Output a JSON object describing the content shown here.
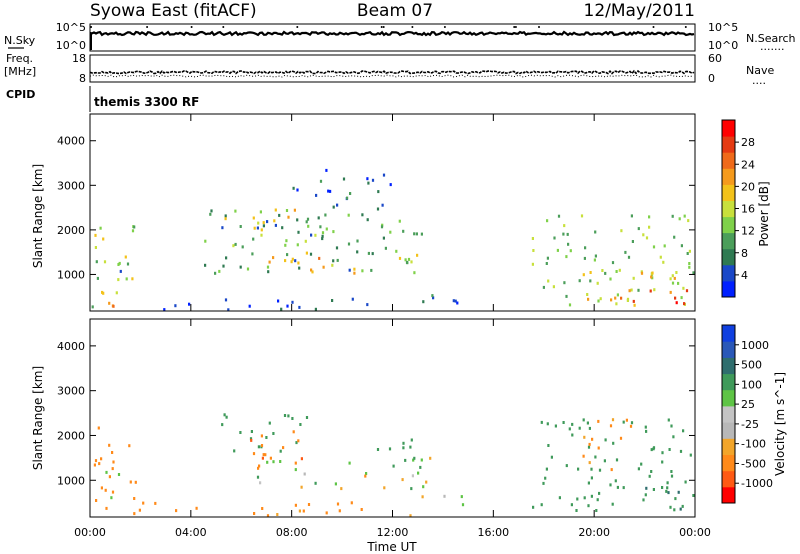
{
  "header": {
    "station": "Syowa East (fitACF)",
    "beam": "Beam 07",
    "date": "12/May/2011"
  },
  "nsky_panel": {
    "label": "N.Sky",
    "ticks_left": [
      "10^5",
      "10^0"
    ],
    "ticks_right": [
      "10^5",
      "10^0"
    ],
    "right_label": "N.Search",
    "right_dots": "......."
  },
  "freq_panel": {
    "label_line1": "Freq.",
    "label_line2": "[MHz]",
    "ticks_left": [
      "18",
      "8"
    ],
    "ticks_right": [
      "60",
      "0"
    ],
    "right_label": "Nave",
    "right_dots": "...."
  },
  "cpid_panel": {
    "label": "CPID",
    "value": "themis 3300 RF"
  },
  "colors": {
    "power": [
      "#0020ff",
      "#1a48c8",
      "#2f7a52",
      "#4b9e5a",
      "#7fd14a",
      "#c8e03c",
      "#f3c21a",
      "#f59a1c",
      "#ef6a1a",
      "#e53a12",
      "#ff0000"
    ],
    "velocity": [
      "#ff0000",
      "#ff5a14",
      "#ff8a1a",
      "#f2a52a",
      "#b8b8b8",
      "#c4c4c4",
      "#5ec445",
      "#3f9a5a",
      "#2f6e6e",
      "#2a58b8",
      "#1040e0"
    ]
  },
  "chart_data": [
    {
      "type": "heatmap",
      "name": "power",
      "x_ticks": [
        "00:00",
        "04:00",
        "08:00",
        "12:00",
        "16:00",
        "20:00",
        "00:00"
      ],
      "xlabel": "Time UT",
      "ylabel": "Slant Range [km]",
      "y_ticks": [
        "1000",
        "2000",
        "3000",
        "4000"
      ],
      "xlim_hours": [
        0,
        24
      ],
      "ylim_km": [
        180,
        4600
      ],
      "colorbar": {
        "label": "Power [dB]",
        "ticks": [
          "4",
          "8",
          "12",
          "16",
          "20",
          "24",
          "28"
        ],
        "range": [
          0,
          30
        ]
      },
      "echo_regions": [
        {
          "t0": 0.0,
          "t1": 1.8,
          "r0": 250,
          "r1": 2200,
          "level": 14
        },
        {
          "t0": 0.9,
          "t1": 1.5,
          "r0": 1000,
          "r1": 1700,
          "level": 8
        },
        {
          "t0": 0.2,
          "t1": 1.4,
          "r0": 250,
          "r1": 700,
          "level": 22
        },
        {
          "t0": 4.5,
          "t1": 13.5,
          "r0": 1000,
          "r1": 2500,
          "level": 9
        },
        {
          "t0": 5.2,
          "t1": 9.0,
          "r0": 1600,
          "r1": 2500,
          "level": 16
        },
        {
          "t0": 7.0,
          "t1": 13.0,
          "r0": 1000,
          "r1": 1500,
          "level": 19
        },
        {
          "t0": 13.0,
          "t1": 14.5,
          "r0": 400,
          "r1": 700,
          "level": 6
        },
        {
          "t0": 2.0,
          "t1": 15.0,
          "r0": 200,
          "r1": 450,
          "level": 4
        },
        {
          "t0": 17.5,
          "t1": 24.0,
          "r0": 300,
          "r1": 2400,
          "level": 12
        },
        {
          "t0": 19.5,
          "t1": 23.5,
          "r0": 300,
          "r1": 1200,
          "level": 18
        },
        {
          "t0": 21.0,
          "t1": 23.8,
          "r0": 250,
          "r1": 700,
          "level": 26
        },
        {
          "t0": 8.0,
          "t1": 12.0,
          "r0": 2500,
          "r1": 3400,
          "level": 5
        }
      ]
    },
    {
      "type": "heatmap",
      "name": "velocity",
      "x_ticks": [
        "00:00",
        "04:00",
        "08:00",
        "12:00",
        "16:00",
        "20:00",
        "00:00"
      ],
      "xlabel": "Time UT",
      "ylabel": "Slant Range [km]",
      "y_ticks": [
        "1000",
        "2000",
        "3000",
        "4000"
      ],
      "xlim_hours": [
        0,
        24
      ],
      "ylim_km": [
        180,
        4600
      ],
      "colorbar": {
        "label": "Velocity [m s^-1]",
        "ticks": [
          "-1000",
          "-500",
          "-100",
          "-25",
          "25",
          "100",
          "500",
          "1000"
        ]
      },
      "echo_regions": [
        {
          "t0": 0.0,
          "t1": 1.8,
          "r0": 250,
          "r1": 2200,
          "level": -300
        },
        {
          "t0": 0.5,
          "t1": 1.3,
          "r0": 600,
          "r1": 1200,
          "level": 80
        },
        {
          "t0": 1.5,
          "t1": 13.0,
          "r0": 200,
          "r1": 500,
          "level": -150
        },
        {
          "t0": 5.2,
          "t1": 9.0,
          "r0": 1600,
          "r1": 2500,
          "level": 300
        },
        {
          "t0": 6.5,
          "t1": 13.5,
          "r0": 800,
          "r1": 1500,
          "level": 10
        },
        {
          "t0": 6.0,
          "t1": 8.5,
          "r0": 1100,
          "r1": 2100,
          "level": -400
        },
        {
          "t0": 11.0,
          "t1": 13.5,
          "r0": 1300,
          "r1": 1900,
          "level": 150
        },
        {
          "t0": 13.0,
          "t1": 15.0,
          "r0": 300,
          "r1": 700,
          "level": -10
        },
        {
          "t0": 17.5,
          "t1": 24.0,
          "r0": 300,
          "r1": 2400,
          "level": 250
        },
        {
          "t0": 19.5,
          "t1": 21.5,
          "r0": 1200,
          "r1": 2400,
          "level": -200
        },
        {
          "t0": 22.0,
          "t1": 24.0,
          "r0": 300,
          "r1": 1000,
          "level": 500
        }
      ]
    }
  ]
}
